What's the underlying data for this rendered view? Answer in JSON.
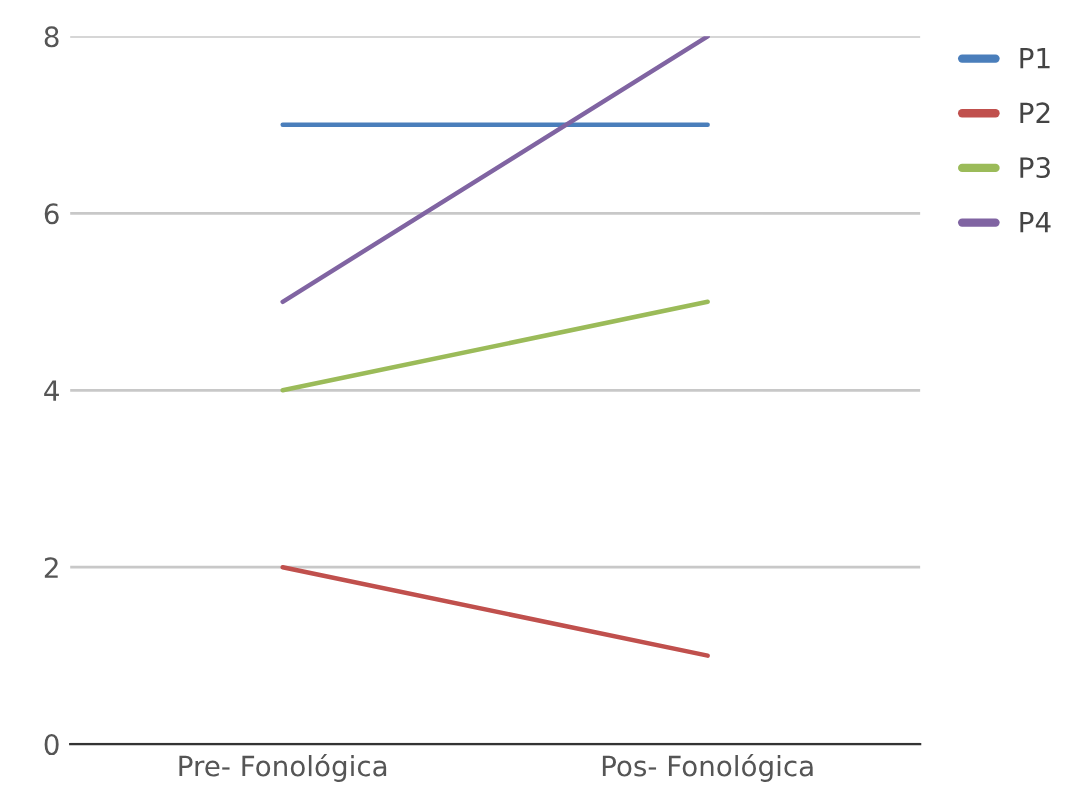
{
  "chart_data": {
    "type": "line",
    "categories": [
      "Pre- Fonológica",
      "Pos- Fonológica"
    ],
    "series": [
      {
        "name": "P1",
        "color": "#4a7ebb",
        "values": [
          7,
          7
        ]
      },
      {
        "name": "P2",
        "color": "#c0504d",
        "values": [
          2,
          1
        ]
      },
      {
        "name": "P3",
        "color": "#9bbb59",
        "values": [
          4,
          5
        ]
      },
      {
        "name": "P4",
        "color": "#8064a2",
        "values": [
          5,
          8
        ]
      }
    ],
    "ylim": [
      0,
      8
    ],
    "yticks": [
      0,
      2,
      4,
      6,
      8
    ],
    "grid": "y",
    "legend": "top right",
    "marker": "none",
    "line_style": "solid"
  }
}
